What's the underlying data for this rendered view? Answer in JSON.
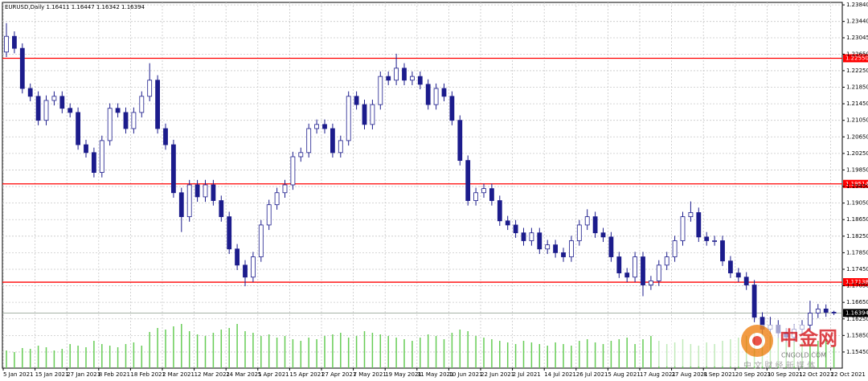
{
  "chart_data": {
    "type": "candlestick",
    "title": "EURUSD,Daily  1.16411 1.16447 1.16342 1.16394",
    "categories": [
      "5 Jan 2021",
      null,
      null,
      null,
      "15 Jan 2021",
      null,
      null,
      null,
      "27 Jan 2021",
      null,
      null,
      null,
      "8 Feb 2021",
      null,
      null,
      null,
      "18 Feb 2021",
      null,
      null,
      null,
      "2 Mar 2021",
      null,
      null,
      null,
      "12 Mar 2021",
      null,
      null,
      null,
      "24 Mar 2021",
      null,
      null,
      null,
      "5 Apr 2021",
      null,
      null,
      null,
      "15 Apr 2021",
      null,
      null,
      null,
      "27 Apr 2021",
      null,
      null,
      null,
      "7 May 2021",
      null,
      null,
      null,
      "19 May 2021",
      null,
      null,
      null,
      "31 May 2021",
      null,
      null,
      null,
      "10 Jun 2021",
      null,
      null,
      null,
      "22 Jun 2021",
      null,
      null,
      null,
      "2 Jul 2021",
      null,
      null,
      null,
      "14 Jul 2021",
      null,
      null,
      null,
      "26 Jul 2021",
      null,
      null,
      null,
      "5 Aug 2021",
      null,
      null,
      null,
      "17 Aug 2021",
      null,
      null,
      null,
      "27 Aug 2021",
      null,
      null,
      null,
      "8 Sep 2021",
      null,
      null,
      null,
      "20 Sep 2021",
      null,
      null,
      null,
      "30 Sep 2021",
      null,
      null,
      null,
      "12 Oct 2021",
      null,
      null,
      null,
      "22 Oct 2021"
    ],
    "open": [
      1.227,
      1.2308,
      1.2279,
      1.2182,
      1.2163,
      1.2105,
      1.2153,
      1.2163,
      1.2134,
      1.2124,
      1.2046,
      1.2027,
      1.1979,
      1.2056,
      1.2134,
      1.2124,
      1.2085,
      1.2124,
      1.2163,
      1.2202,
      1.2085,
      1.2046,
      1.193,
      1.1872,
      1.1949,
      1.192,
      1.1949,
      1.1911,
      1.1872,
      1.1794,
      1.1755,
      1.1726,
      1.1775,
      1.1852,
      1.1901,
      1.193,
      1.1949,
      1.2017,
      1.2027,
      1.2085,
      1.2095,
      1.2085,
      1.2027,
      1.2056,
      1.2163,
      1.2143,
      1.2095,
      1.2143,
      1.2211,
      1.2202,
      1.2231,
      1.2202,
      1.2211,
      1.2192,
      1.2143,
      1.2182,
      1.2163,
      1.2105,
      1.2008,
      1.1911,
      1.193,
      1.194,
      1.1911,
      1.1862,
      1.1852,
      1.1833,
      1.1814,
      1.1833,
      1.1794,
      1.1804,
      1.1785,
      1.1775,
      1.1814,
      1.1852,
      1.1872,
      1.1833,
      1.1823,
      1.1775,
      1.1736,
      1.1726,
      1.1775,
      1.1707,
      1.1717,
      1.1755,
      1.1775,
      1.1814,
      1.1872,
      1.1882,
      1.1823,
      1.1814,
      1.1814,
      1.1765,
      1.1736,
      1.1726,
      1.1707,
      1.1629,
      1.16,
      1.161,
      1.1591,
      1.1581,
      1.16,
      1.161,
      1.1639,
      1.1649,
      1.16411
    ],
    "high": [
      1.234,
      1.232,
      1.2291,
      1.2194,
      1.2175,
      1.2165,
      1.2175,
      1.2175,
      1.2146,
      1.2136,
      1.2058,
      1.2039,
      1.2068,
      1.2146,
      1.2146,
      1.2136,
      1.2136,
      1.2175,
      1.2243,
      1.2214,
      1.2097,
      1.2058,
      1.1942,
      1.1961,
      1.1961,
      1.1961,
      1.1961,
      1.1923,
      1.1884,
      1.1806,
      1.1767,
      1.1787,
      1.1864,
      1.1913,
      1.1942,
      1.1961,
      1.2029,
      1.2039,
      1.2097,
      1.2107,
      1.2107,
      1.2097,
      1.2068,
      1.2175,
      1.2175,
      1.2155,
      1.2155,
      1.2223,
      1.2223,
      1.2266,
      1.2243,
      1.2223,
      1.2223,
      1.2204,
      1.2194,
      1.2194,
      1.2175,
      1.2117,
      1.202,
      1.1942,
      1.1952,
      1.1952,
      1.1923,
      1.1874,
      1.1864,
      1.1845,
      1.1845,
      1.1845,
      1.1816,
      1.1816,
      1.1797,
      1.1826,
      1.1864,
      1.189,
      1.1884,
      1.1845,
      1.1835,
      1.1787,
      1.1748,
      1.1787,
      1.1787,
      1.1729,
      1.1767,
      1.1787,
      1.1826,
      1.1884,
      1.1909,
      1.1894,
      1.1835,
      1.1826,
      1.1826,
      1.1777,
      1.1748,
      1.1738,
      1.1719,
      1.1641,
      1.163,
      1.1622,
      1.1603,
      1.1612,
      1.1622,
      1.1669,
      1.1661,
      1.166,
      1.16447
    ],
    "low": [
      1.2258,
      1.2267,
      1.217,
      1.2151,
      1.2093,
      1.2093,
      1.2141,
      1.2122,
      1.2112,
      1.2034,
      1.2015,
      1.1967,
      1.1967,
      1.2044,
      1.2112,
      1.2073,
      1.2073,
      1.2112,
      1.2151,
      1.2073,
      1.2034,
      1.1918,
      1.1835,
      1.186,
      1.1908,
      1.1908,
      1.1899,
      1.186,
      1.1782,
      1.1743,
      1.1704,
      1.1714,
      1.1763,
      1.184,
      1.1889,
      1.1918,
      1.1937,
      1.2005,
      1.2015,
      1.2073,
      1.2073,
      1.2015,
      1.2015,
      1.2044,
      1.2131,
      1.2083,
      1.2083,
      1.2131,
      1.219,
      1.219,
      1.219,
      1.219,
      1.218,
      1.2131,
      1.2131,
      1.2151,
      1.2093,
      1.1996,
      1.1899,
      1.1899,
      1.1918,
      1.1899,
      1.185,
      1.184,
      1.1821,
      1.1802,
      1.1802,
      1.1782,
      1.1782,
      1.1773,
      1.1763,
      1.1763,
      1.1802,
      1.184,
      1.1821,
      1.1811,
      1.1763,
      1.1724,
      1.1714,
      1.1714,
      1.168,
      1.1695,
      1.1705,
      1.1743,
      1.1763,
      1.1802,
      1.186,
      1.1811,
      1.1802,
      1.1802,
      1.1753,
      1.1724,
      1.1714,
      1.1695,
      1.1617,
      1.1588,
      1.1588,
      1.1579,
      1.1569,
      1.1569,
      1.1588,
      1.1598,
      1.1627,
      1.163,
      1.16342
    ],
    "close": [
      1.2308,
      1.2279,
      1.2182,
      1.2163,
      1.2105,
      1.2153,
      1.2163,
      1.2134,
      1.2124,
      1.2046,
      1.2027,
      1.1979,
      1.2056,
      1.2134,
      1.2124,
      1.2085,
      1.2124,
      1.2163,
      1.2202,
      1.2085,
      1.2046,
      1.193,
      1.1872,
      1.1949,
      1.192,
      1.1949,
      1.1911,
      1.1872,
      1.1794,
      1.1755,
      1.1726,
      1.1775,
      1.1852,
      1.1901,
      1.193,
      1.1949,
      1.2017,
      1.2027,
      1.2085,
      1.2095,
      1.2085,
      1.2027,
      1.2056,
      1.2163,
      1.2143,
      1.2095,
      1.2143,
      1.2211,
      1.2202,
      1.2231,
      1.2202,
      1.2211,
      1.2192,
      1.2143,
      1.2182,
      1.2163,
      1.2105,
      1.2008,
      1.1911,
      1.193,
      1.194,
      1.1911,
      1.1862,
      1.1852,
      1.1833,
      1.1814,
      1.1833,
      1.1794,
      1.1804,
      1.1785,
      1.1775,
      1.1814,
      1.1852,
      1.1872,
      1.1833,
      1.1823,
      1.1775,
      1.1736,
      1.1726,
      1.1775,
      1.1707,
      1.1717,
      1.1755,
      1.1775,
      1.1814,
      1.1872,
      1.1882,
      1.1823,
      1.1814,
      1.1814,
      1.1765,
      1.1736,
      1.1726,
      1.1707,
      1.1629,
      1.16,
      1.161,
      1.1591,
      1.1581,
      1.16,
      1.161,
      1.1639,
      1.1649,
      1.1641,
      1.16394
    ],
    "volumes": [
      22,
      20,
      25,
      24,
      28,
      26,
      22,
      24,
      30,
      28,
      26,
      34,
      30,
      28,
      26,
      30,
      32,
      28,
      45,
      50,
      48,
      52,
      55,
      46,
      42,
      40,
      44,
      48,
      50,
      55,
      46,
      44,
      40,
      42,
      38,
      40,
      36,
      34,
      38,
      36,
      40,
      42,
      44,
      38,
      40,
      46,
      44,
      42,
      40,
      38,
      36,
      34,
      38,
      42,
      40,
      36,
      44,
      48,
      46,
      40,
      38,
      36,
      34,
      32,
      30,
      34,
      32,
      30,
      28,
      32,
      30,
      28,
      34,
      36,
      32,
      30,
      34,
      36,
      38,
      30,
      36,
      40,
      34,
      30,
      32,
      36,
      30,
      28,
      32,
      30,
      34,
      36,
      38,
      40,
      44,
      46,
      40,
      38,
      36,
      34,
      32,
      30,
      34,
      36,
      28
    ],
    "bull_color": "#ffffff",
    "bear_color": "#1c1c8c",
    "wick_color": "#1c1c8c",
    "volume_color": "#66cc55",
    "ylim": [
      1.1506,
      1.239
    ],
    "yticks": [
      {
        "value": 1.2384,
        "label": "1.23840"
      },
      {
        "value": 1.2344,
        "label": "1.23440"
      },
      {
        "value": 1.23045,
        "label": "1.23045"
      },
      {
        "value": 1.2265,
        "label": "1.22650"
      },
      {
        "value": 1.2225,
        "label": "1.22250"
      },
      {
        "value": 1.2185,
        "label": "1.21850"
      },
      {
        "value": 1.2145,
        "label": "1.21450"
      },
      {
        "value": 1.2105,
        "label": "1.21050"
      },
      {
        "value": 1.2065,
        "label": "1.20650"
      },
      {
        "value": 1.2025,
        "label": "1.20250"
      },
      {
        "value": 1.1985,
        "label": "1.19850"
      },
      {
        "value": 1.1945,
        "label": "1.19450"
      },
      {
        "value": 1.1905,
        "label": "1.19050"
      },
      {
        "value": 1.1865,
        "label": "1.18650"
      },
      {
        "value": 1.1825,
        "label": "1.18250"
      },
      {
        "value": 1.1785,
        "label": "1.17850"
      },
      {
        "value": 1.1745,
        "label": "1.17450"
      },
      {
        "value": 1.1705,
        "label": "1.17050"
      },
      {
        "value": 1.1665,
        "label": "1.16650"
      },
      {
        "value": 1.1625,
        "label": "1.16250"
      },
      {
        "value": 1.1585,
        "label": "1.15850"
      },
      {
        "value": 1.1545,
        "label": "1.15450"
      }
    ],
    "grid": true,
    "levels": [
      {
        "value": 1.2255,
        "label": "1.22550"
      },
      {
        "value": 1.19514,
        "label": "1.19514"
      },
      {
        "value": 1.17138,
        "label": "1.17138"
      }
    ],
    "level_color": "#ff0000",
    "current_price": {
      "value": 1.16394,
      "label": "1.16394"
    },
    "watermark": {
      "brand": "中金网",
      "domain": "CNGOLD.COM",
      "slogan": "中 文 财 经 新 媒 体"
    }
  }
}
